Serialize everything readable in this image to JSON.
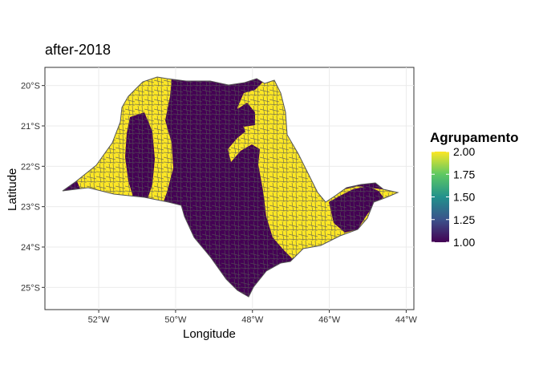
{
  "map": {
    "title": "after-2018",
    "xlabel": "Longitude",
    "ylabel": "Latitude",
    "x_ticks": [
      {
        "value": -52,
        "label": "52°W"
      },
      {
        "value": -50,
        "label": "50°W"
      },
      {
        "value": -48,
        "label": "48°W"
      },
      {
        "value": -46,
        "label": "46°W"
      },
      {
        "value": -44,
        "label": "44°W"
      }
    ],
    "y_ticks": [
      {
        "value": -20,
        "label": "20°S"
      },
      {
        "value": -21,
        "label": "21°S"
      },
      {
        "value": -22,
        "label": "22°S"
      },
      {
        "value": -23,
        "label": "23°S"
      },
      {
        "value": -24,
        "label": "24°S"
      },
      {
        "value": -25,
        "label": "25°S"
      }
    ],
    "xlim": [
      -53.4,
      -43.8
    ],
    "ylim": [
      -25.55,
      -19.55
    ],
    "grid": true,
    "fill_colors": {
      "low": "#440154",
      "high": "#fde725",
      "border": "#555555"
    }
  },
  "legend": {
    "title": "Agrupamento",
    "range": [
      1,
      2
    ],
    "ticks": [
      {
        "value": 2.0,
        "label": "2.00"
      },
      {
        "value": 1.75,
        "label": "1.75"
      },
      {
        "value": 1.5,
        "label": "1.50"
      },
      {
        "value": 1.25,
        "label": "1.25"
      },
      {
        "value": 1.0,
        "label": "1.00"
      }
    ],
    "gradient": [
      "#fde725",
      "#5ec962",
      "#21918c",
      "#3b528b",
      "#440154"
    ]
  }
}
